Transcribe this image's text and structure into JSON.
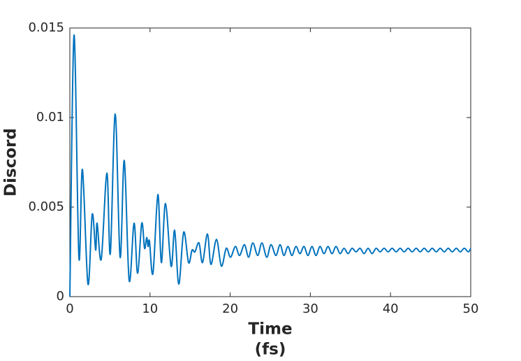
{
  "chart_data": {
    "type": "line",
    "xlabel": [
      "Time",
      "(fs)"
    ],
    "ylabel": "Discord",
    "x": [
      0,
      0.52,
      1.13,
      1.57,
      2.26,
      2.79,
      3.22,
      3.4,
      3.92,
      4.62,
      5.05,
      5.66,
      6.27,
      6.79,
      7.4,
      8.01,
      8.45,
      8.97,
      9.32,
      9.58,
      9.76,
      9.93,
      10.37,
      10.98,
      11.41,
      11.93,
      12.63,
      13.07,
      13.59,
      14.2,
      14.81,
      15.24,
      15.6,
      16.11,
      16.55,
      17.16,
      17.6,
      18.29,
      18.9,
      19.51,
      20.04,
      20.65,
      21.17,
      21.78,
      22.3,
      22.82,
      23.43,
      23.96,
      24.56,
      25.09,
      25.7,
      26.22,
      26.7,
      27.2,
      27.7,
      28.2,
      28.7,
      29.2,
      29.7,
      30.2,
      30.7,
      31.2,
      31.7,
      32.2,
      32.7,
      33.2,
      33.7,
      34.2,
      34.7,
      35.2,
      35.7,
      36.2,
      36.7,
      37.2,
      37.7,
      38.2,
      38.7,
      39.2,
      39.7,
      40.2,
      40.7,
      41.2,
      41.7,
      42.2,
      42.7,
      43.2,
      43.7,
      44.2,
      44.7,
      45.2,
      45.7,
      46.2,
      46.7,
      47.2,
      47.7,
      48.2,
      48.7,
      49.2,
      49.7,
      50
    ],
    "series": [
      {
        "color": "#0072bd",
        "values": [
          0,
          0.0146,
          0.0022,
          0.0071,
          0.0007,
          0.0046,
          0.0026,
          0.0041,
          0.0021,
          0.0069,
          0.0024,
          0.0102,
          0.0022,
          0.0076,
          0.0009,
          0.0041,
          0.0013,
          0.0041,
          0.0027,
          0.0033,
          0.0028,
          0.0031,
          0.0013,
          0.0057,
          0.0019,
          0.0052,
          0.0017,
          0.0037,
          0.0007,
          0.0036,
          0.0019,
          0.0026,
          0.0025,
          0.003,
          0.0019,
          0.0035,
          0.0018,
          0.0032,
          0.0017,
          0.0027,
          0.0022,
          0.0028,
          0.0023,
          0.0029,
          0.0022,
          0.003,
          0.0023,
          0.003,
          0.0022,
          0.0029,
          0.0023,
          0.0029,
          0.0023,
          0.0028,
          0.0023,
          0.0028,
          0.0024,
          0.0028,
          0.0023,
          0.0028,
          0.0023,
          0.0028,
          0.0024,
          0.0028,
          0.0024,
          0.0028,
          0.0024,
          0.0027,
          0.0024,
          0.0027,
          0.0025,
          0.0027,
          0.0024,
          0.0027,
          0.0024,
          0.0027,
          0.0025,
          0.0027,
          0.0025,
          0.0027,
          0.0025,
          0.0027,
          0.0025,
          0.0027,
          0.0025,
          0.0027,
          0.0025,
          0.0027,
          0.0025,
          0.0027,
          0.0025,
          0.0027,
          0.0025,
          0.0027,
          0.0025,
          0.0027,
          0.0025,
          0.0027,
          0.0025,
          0.0027
        ]
      }
    ],
    "xlim": [
      0,
      50
    ],
    "xticks": [
      0,
      10,
      20,
      30,
      40,
      50
    ],
    "ylim": [
      0,
      0.015
    ],
    "yticks": [
      0,
      0.005,
      0.01,
      0.015
    ]
  }
}
